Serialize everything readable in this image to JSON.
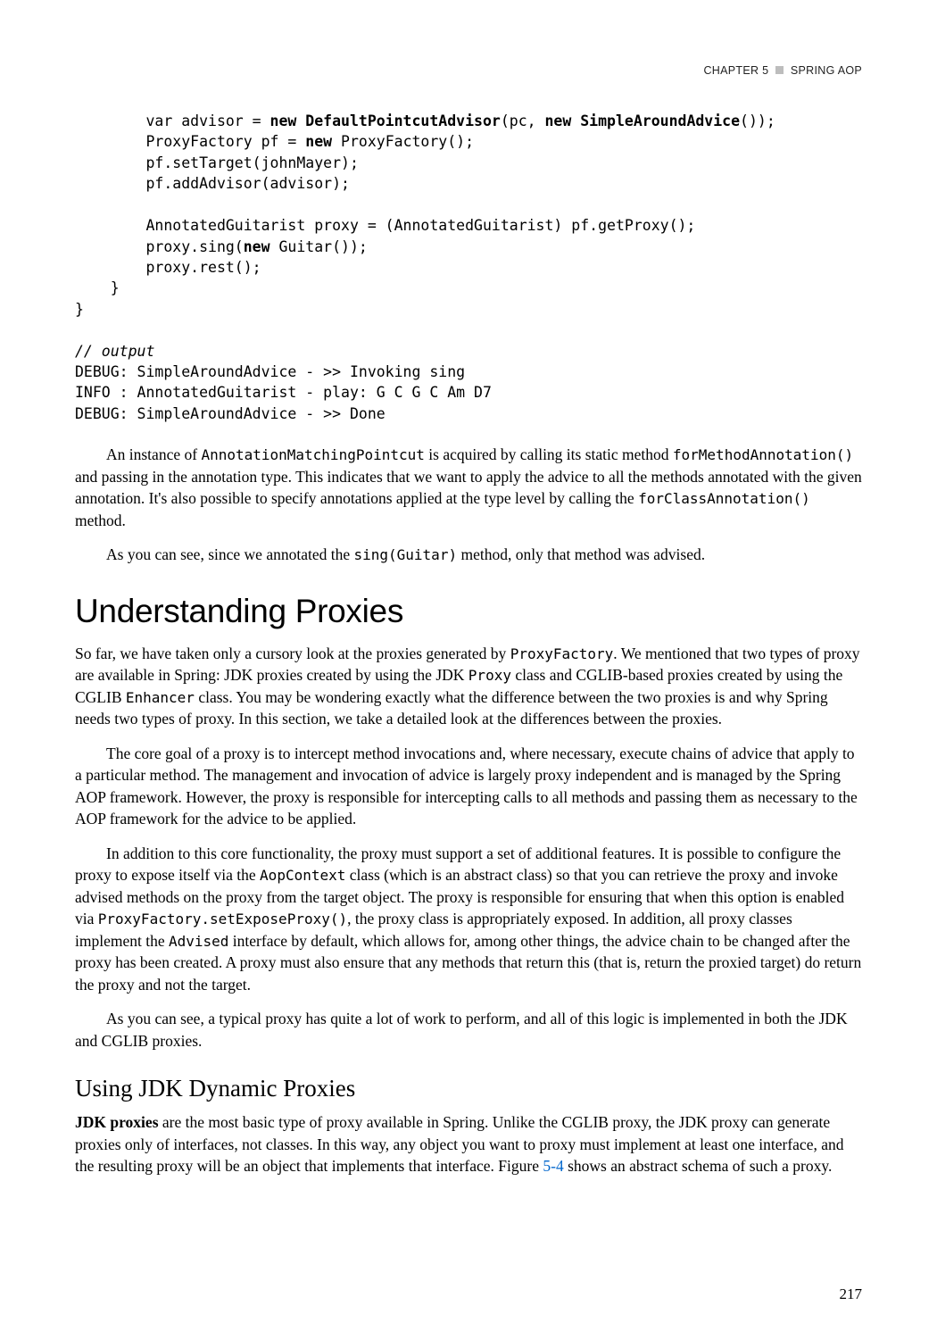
{
  "header": {
    "chapter": "CHAPTER 5",
    "title": "SPRING AOP"
  },
  "code1": {
    "l1a": "        var advisor = ",
    "l1b": "new DefaultPointcutAdvisor",
    "l1c": "(pc, ",
    "l1d": "new SimpleAroundAdvice",
    "l1e": "());",
    "l2a": "        ProxyFactory pf = ",
    "l2b": "new",
    "l2c": " ProxyFactory();",
    "l3": "        pf.setTarget(johnMayer);",
    "l4": "        pf.addAdvisor(advisor);",
    "l5": "",
    "l6": "        AnnotatedGuitarist proxy = (AnnotatedGuitarist) pf.getProxy();",
    "l7a": "        proxy.sing(",
    "l7b": "new",
    "l7c": " Guitar());",
    "l8": "        proxy.rest();",
    "l9": "    }",
    "l10": "}",
    "l11": "",
    "l12": "// output",
    "l13": "DEBUG: SimpleAroundAdvice - >> Invoking sing",
    "l14": "INFO : AnnotatedGuitarist - play: G C G C Am D7",
    "l15": "DEBUG: SimpleAroundAdvice - >> Done"
  },
  "para1": {
    "s1a": "An instance of ",
    "s1b": "AnnotationMatchingPointcut",
    "s1c": " is acquired by calling its static method ",
    "s2a": "forMethodAnnotation()",
    "s2b": " and passing in the annotation type. This indicates that we want to apply the advice to all the methods annotated with the given annotation. It's also possible to specify annotations applied at the type level by calling the ",
    "s2c": "forClassAnnotation()",
    "s2d": " method."
  },
  "para2": {
    "s1a": "As you can see, since we annotated the ",
    "s1b": "sing(Guitar)",
    "s1c": " method, only that method was advised."
  },
  "h1": "Understanding Proxies",
  "para3": {
    "s1a": "So far, we have taken only a cursory look at the proxies generated by ",
    "s1b": "ProxyFactory",
    "s1c": ". We mentioned that two types of proxy are available in Spring: JDK proxies created by using the JDK ",
    "s1d": "Proxy",
    "s1e": " class and CGLIB-based proxies created by using the CGLIB ",
    "s1f": "Enhancer",
    "s1g": " class. You may be wondering exactly what the difference between the two proxies is and why Spring needs two types of proxy. In this section, we take a detailed look at the differences between the proxies."
  },
  "para4": "The core goal of a proxy is to intercept method invocations and, where necessary, execute chains of advice that apply to a particular method. The management and invocation of advice is largely proxy independent and is managed by the Spring AOP framework. However, the proxy is responsible for intercepting calls to all methods and passing them as necessary to the AOP framework for the advice to be applied.",
  "para5": {
    "s1a": "In addition to this core functionality, the proxy must support a set of additional features. It is possible to configure the proxy to expose itself via the ",
    "s1b": "AopContext",
    "s1c": " class (which is an abstract class) so that you can retrieve the proxy and invoke advised methods on the proxy from the target object. The proxy is responsible for ensuring that when this option is enabled via ",
    "s1d": "ProxyFactory.setExposeProxy()",
    "s1e": ", the proxy class is appropriately exposed. In addition, all proxy classes implement the ",
    "s1f": "Advised",
    "s1g": " interface by default, which allows for, among other things, the advice chain to be changed after the proxy has been created. A proxy must also ensure that any methods that return this (that is, return the proxied target) do return the proxy and not the target."
  },
  "para6": "As you can see, a typical proxy has quite a lot of work to perform, and all of this logic is implemented in both the JDK and CGLIB proxies.",
  "h2": "Using JDK Dynamic Proxies",
  "para7": {
    "s1a": "JDK proxies",
    "s1b": " are the most basic type of proxy available in Spring. Unlike the CGLIB proxy, the JDK proxy can generate proxies only of interfaces, not classes. In this way, any object you want to proxy must implement at least one interface, and the resulting proxy will be an object that implements that interface. Figure ",
    "s1c": "5-4",
    "s1d": " shows an abstract schema of such a proxy."
  },
  "pageNumber": "217"
}
